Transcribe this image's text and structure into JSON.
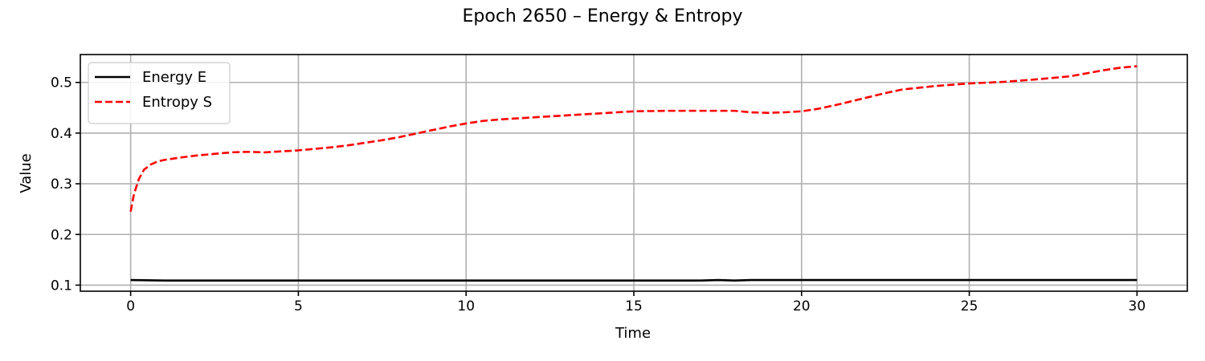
{
  "chart_data": {
    "type": "line",
    "title": "Epoch 2650 – Energy & Entropy",
    "xlabel": "Time",
    "ylabel": "Value",
    "xlim": [
      -1.5,
      31.5
    ],
    "ylim": [
      0.088,
      0.555
    ],
    "xticks": [
      0,
      5,
      10,
      15,
      20,
      25,
      30
    ],
    "xtick_labels": [
      "0",
      "5",
      "10",
      "15",
      "20",
      "25",
      "30"
    ],
    "yticks": [
      0.1,
      0.2,
      0.3,
      0.4,
      0.5
    ],
    "ytick_labels": [
      "0.1",
      "0.2",
      "0.3",
      "0.4",
      "0.5"
    ],
    "grid": true,
    "legend_position": "upper-left",
    "series": [
      {
        "name": "Energy E",
        "color": "#000000",
        "style": "solid",
        "x": [
          0,
          1,
          2,
          3,
          4,
          5,
          6,
          7,
          8,
          9,
          10,
          11,
          12,
          13,
          14,
          15,
          16,
          16.5,
          17,
          17.5,
          18,
          18.5,
          19,
          20,
          21,
          22,
          23,
          24,
          25,
          26,
          27,
          28,
          29,
          30
        ],
        "y": [
          0.11,
          0.109,
          0.109,
          0.109,
          0.109,
          0.109,
          0.109,
          0.109,
          0.109,
          0.109,
          0.109,
          0.109,
          0.109,
          0.109,
          0.109,
          0.109,
          0.109,
          0.109,
          0.109,
          0.11,
          0.109,
          0.11,
          0.11,
          0.11,
          0.11,
          0.11,
          0.11,
          0.11,
          0.11,
          0.11,
          0.11,
          0.11,
          0.11,
          0.11
        ]
      },
      {
        "name": "Entropy S",
        "color": "#ff0000",
        "style": "dashed",
        "x": [
          0,
          0.1,
          0.25,
          0.4,
          0.6,
          0.8,
          1,
          1.5,
          2,
          2.5,
          3,
          3.5,
          4,
          4.5,
          5,
          5.5,
          6,
          6.5,
          7,
          7.5,
          8,
          8.5,
          9,
          9.5,
          10,
          10.5,
          11,
          12,
          13,
          14,
          15,
          16,
          17,
          18,
          18.5,
          19,
          19.5,
          20,
          20.5,
          21,
          21.5,
          22,
          22.5,
          23,
          24,
          25,
          26,
          27,
          28,
          28.5,
          29,
          29.5,
          30
        ],
        "y": [
          0.245,
          0.28,
          0.31,
          0.328,
          0.338,
          0.344,
          0.347,
          0.352,
          0.356,
          0.359,
          0.362,
          0.363,
          0.362,
          0.364,
          0.366,
          0.369,
          0.372,
          0.376,
          0.381,
          0.386,
          0.392,
          0.399,
          0.406,
          0.413,
          0.419,
          0.424,
          0.427,
          0.431,
          0.435,
          0.439,
          0.443,
          0.444,
          0.444,
          0.444,
          0.441,
          0.44,
          0.441,
          0.443,
          0.448,
          0.455,
          0.463,
          0.471,
          0.479,
          0.486,
          0.493,
          0.498,
          0.501,
          0.506,
          0.512,
          0.518,
          0.524,
          0.529,
          0.532
        ]
      }
    ]
  }
}
